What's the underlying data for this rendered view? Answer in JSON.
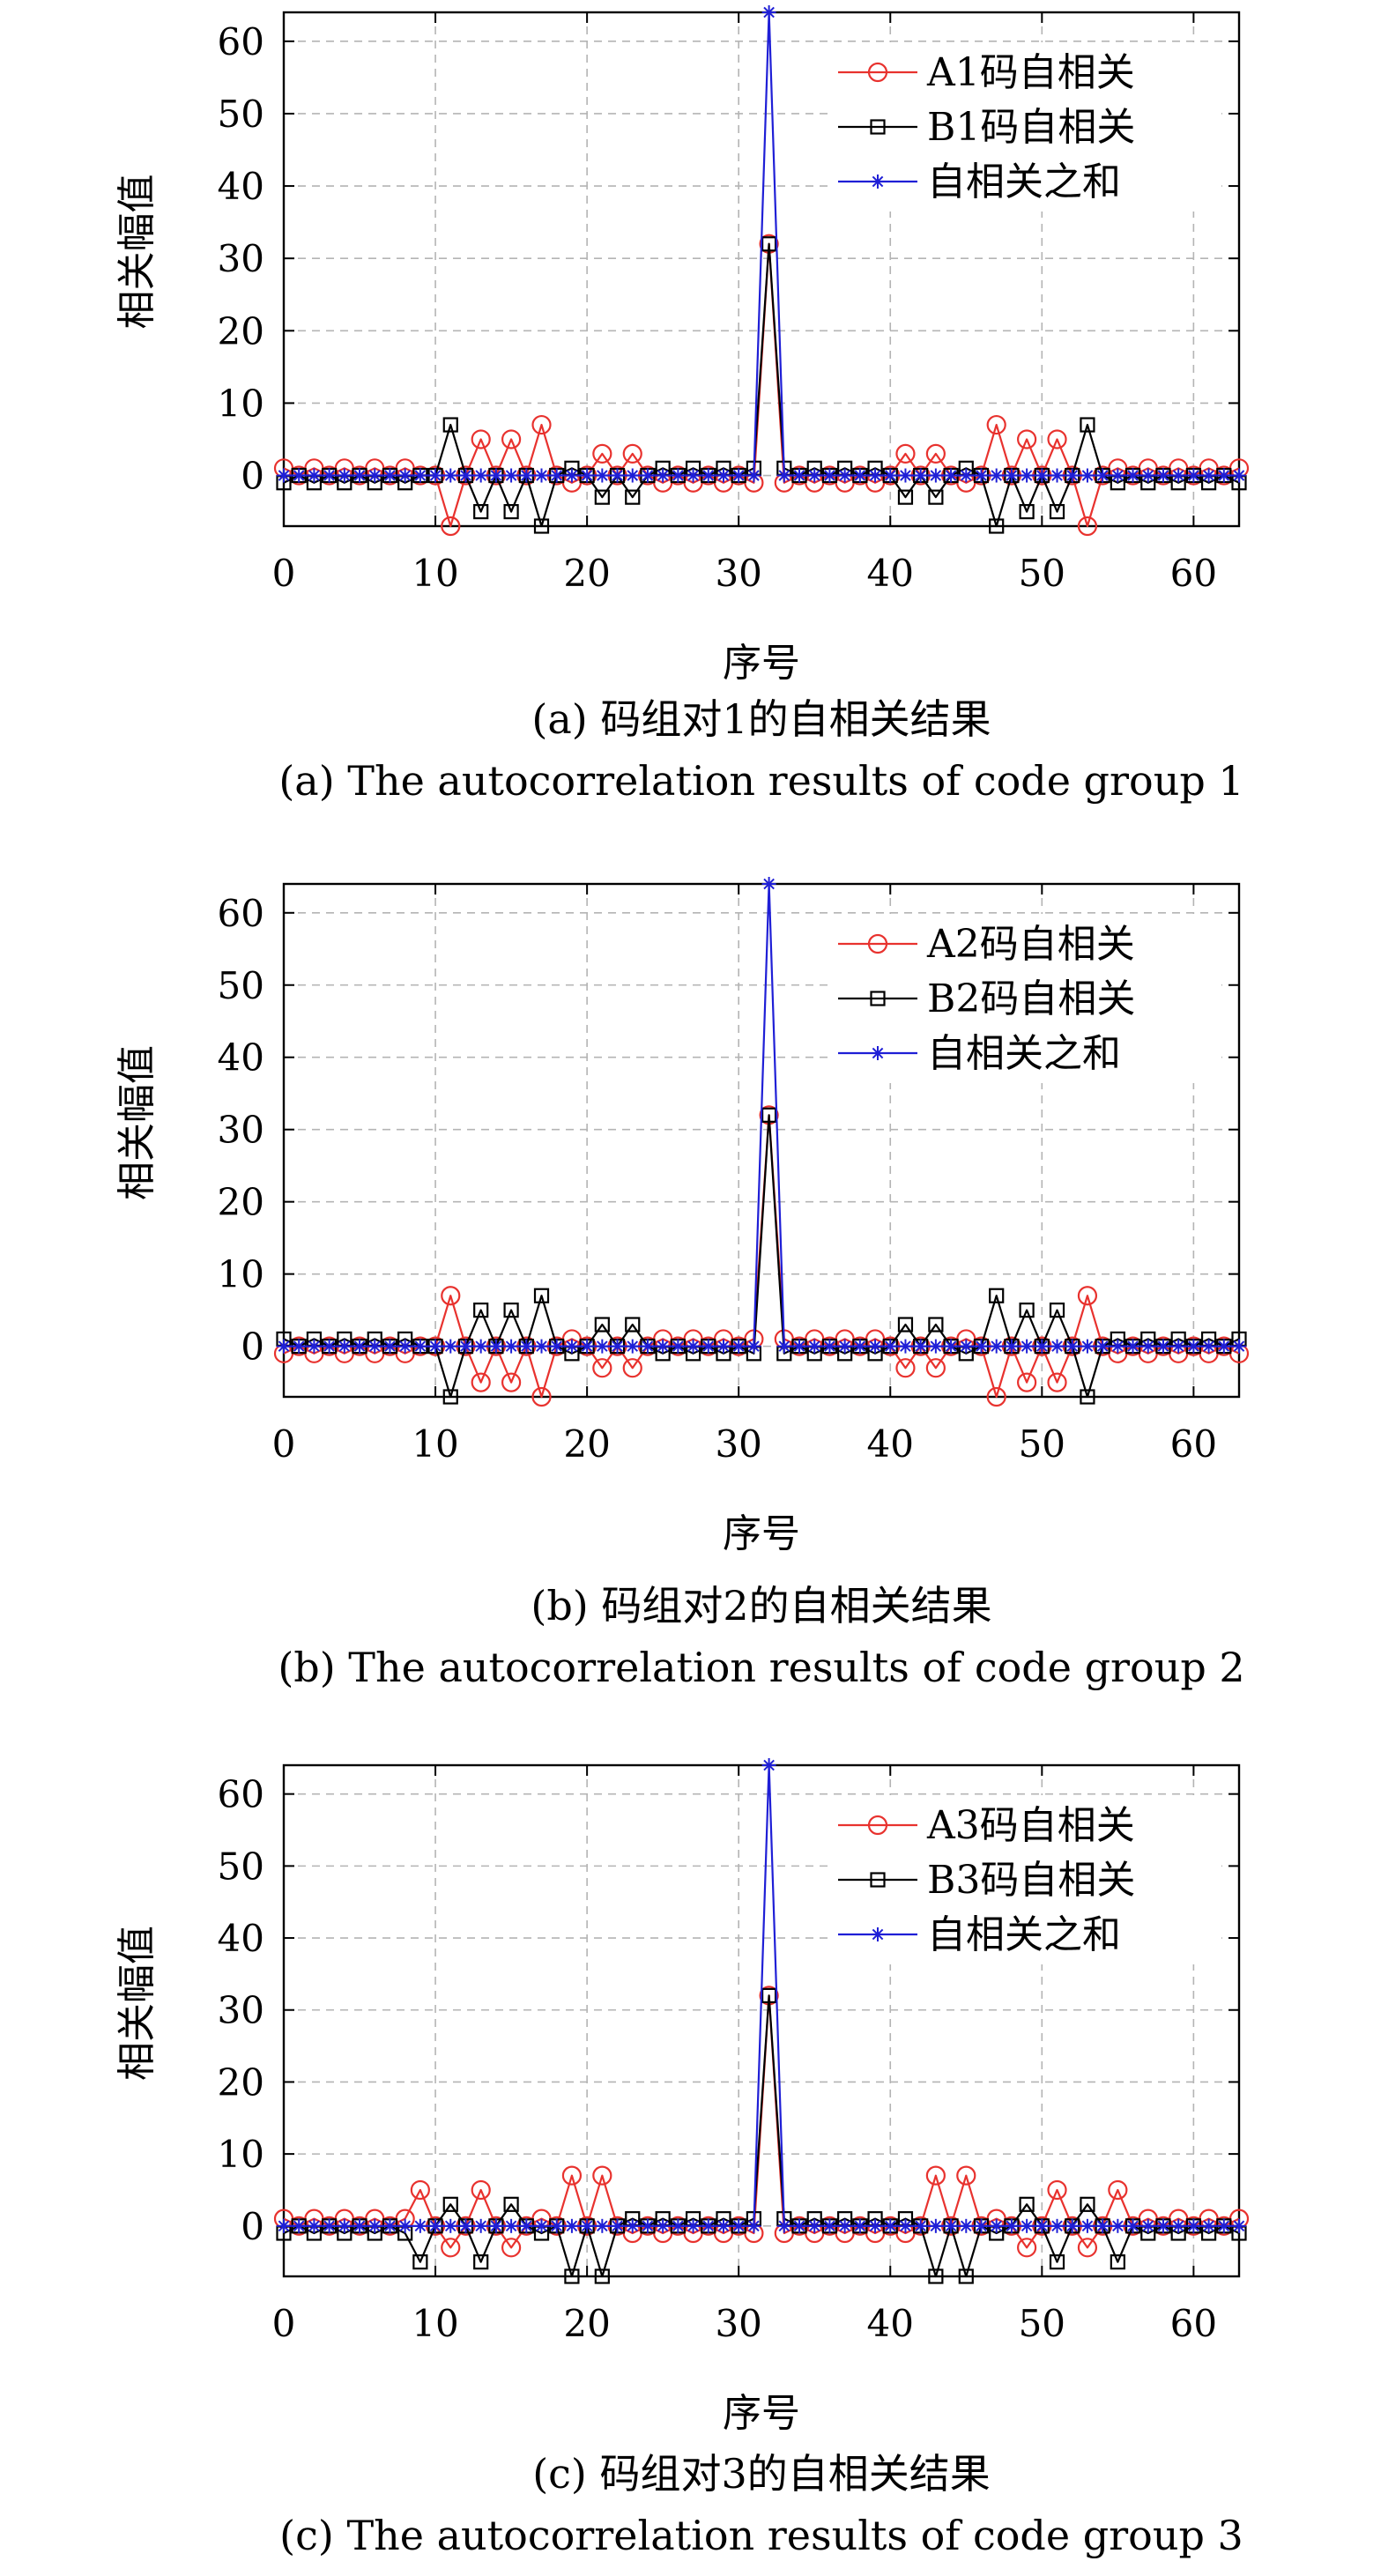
{
  "chart_data": [
    {
      "type": "line",
      "x": [
        0,
        1,
        2,
        3,
        4,
        5,
        6,
        7,
        8,
        9,
        10,
        11,
        12,
        13,
        14,
        15,
        16,
        17,
        18,
        19,
        20,
        21,
        22,
        23,
        24,
        25,
        26,
        27,
        28,
        29,
        30,
        31,
        32,
        33,
        34,
        35,
        36,
        37,
        38,
        39,
        40,
        41,
        42,
        43,
        44,
        45,
        46,
        47,
        48,
        49,
        50,
        51,
        52,
        53,
        54,
        55,
        56,
        57,
        58,
        59,
        60,
        61,
        62,
        63
      ],
      "xlim": [
        0,
        63
      ],
      "ylim": [
        -7,
        64
      ],
      "xticks": [
        0,
        10,
        20,
        30,
        40,
        50,
        60
      ],
      "yticks": [
        0,
        10,
        20,
        30,
        40,
        50,
        60
      ],
      "xlabel": "序号",
      "ylabel": "相关幅值",
      "grid": true,
      "legend_position": "top-right",
      "series": [
        {
          "name": "A1码自相关",
          "color": "#e8322e",
          "marker": "circle",
          "values": [
            1,
            0,
            1,
            0,
            1,
            0,
            1,
            0,
            1,
            0,
            0,
            -7,
            0,
            5,
            0,
            5,
            0,
            7,
            0,
            -1,
            0,
            3,
            0,
            3,
            0,
            -1,
            0,
            -1,
            0,
            -1,
            0,
            -1,
            32,
            -1,
            0,
            -1,
            0,
            -1,
            0,
            -1,
            0,
            3,
            0,
            3,
            0,
            -1,
            0,
            7,
            0,
            5,
            0,
            5,
            0,
            -7,
            0,
            1,
            0,
            1,
            0,
            1,
            0,
            1,
            0,
            1
          ]
        },
        {
          "name": "B1码自相关",
          "color": "#000000",
          "marker": "square",
          "values": [
            -1,
            0,
            -1,
            0,
            -1,
            0,
            -1,
            0,
            -1,
            0,
            0,
            7,
            0,
            -5,
            0,
            -5,
            0,
            -7,
            0,
            1,
            0,
            -3,
            0,
            -3,
            0,
            1,
            0,
            1,
            0,
            1,
            0,
            1,
            32,
            1,
            0,
            1,
            0,
            1,
            0,
            1,
            0,
            -3,
            0,
            -3,
            0,
            1,
            0,
            -7,
            0,
            -5,
            0,
            -5,
            0,
            7,
            0,
            -1,
            0,
            -1,
            0,
            -1,
            0,
            -1,
            0,
            -1
          ]
        },
        {
          "name": "自相关之和",
          "color": "#1f1fd6",
          "marker": "asterisk",
          "values": [
            0,
            0,
            0,
            0,
            0,
            0,
            0,
            0,
            0,
            0,
            0,
            0,
            0,
            0,
            0,
            0,
            0,
            0,
            0,
            0,
            0,
            0,
            0,
            0,
            0,
            0,
            0,
            0,
            0,
            0,
            0,
            0,
            64,
            0,
            0,
            0,
            0,
            0,
            0,
            0,
            0,
            0,
            0,
            0,
            0,
            0,
            0,
            0,
            0,
            0,
            0,
            0,
            0,
            0,
            0,
            0,
            0,
            0,
            0,
            0,
            0,
            0,
            0,
            0
          ]
        }
      ],
      "caption_cn": "(a) 码组对1的自相关结果",
      "caption_en": "(a) The autocorrelation results of code group 1"
    },
    {
      "type": "line",
      "x": [
        0,
        1,
        2,
        3,
        4,
        5,
        6,
        7,
        8,
        9,
        10,
        11,
        12,
        13,
        14,
        15,
        16,
        17,
        18,
        19,
        20,
        21,
        22,
        23,
        24,
        25,
        26,
        27,
        28,
        29,
        30,
        31,
        32,
        33,
        34,
        35,
        36,
        37,
        38,
        39,
        40,
        41,
        42,
        43,
        44,
        45,
        46,
        47,
        48,
        49,
        50,
        51,
        52,
        53,
        54,
        55,
        56,
        57,
        58,
        59,
        60,
        61,
        62,
        63
      ],
      "xlim": [
        0,
        63
      ],
      "ylim": [
        -7,
        64
      ],
      "xticks": [
        0,
        10,
        20,
        30,
        40,
        50,
        60
      ],
      "yticks": [
        0,
        10,
        20,
        30,
        40,
        50,
        60
      ],
      "xlabel": "序号",
      "ylabel": "相关幅值",
      "grid": true,
      "legend_position": "top-right",
      "series": [
        {
          "name": "A2码自相关",
          "color": "#e8322e",
          "marker": "circle",
          "values": [
            -1,
            0,
            -1,
            0,
            -1,
            0,
            -1,
            0,
            -1,
            0,
            0,
            7,
            0,
            -5,
            0,
            -5,
            0,
            -7,
            0,
            1,
            0,
            -3,
            0,
            -3,
            0,
            1,
            0,
            1,
            0,
            1,
            0,
            1,
            32,
            1,
            0,
            1,
            0,
            1,
            0,
            1,
            0,
            -3,
            0,
            -3,
            0,
            1,
            0,
            -7,
            0,
            -5,
            0,
            -5,
            0,
            7,
            0,
            -1,
            0,
            -1,
            0,
            -1,
            0,
            -1,
            0,
            -1
          ]
        },
        {
          "name": "B2码自相关",
          "color": "#000000",
          "marker": "square",
          "values": [
            1,
            0,
            1,
            0,
            1,
            0,
            1,
            0,
            1,
            0,
            0,
            -7,
            0,
            5,
            0,
            5,
            0,
            7,
            0,
            -1,
            0,
            3,
            0,
            3,
            0,
            -1,
            0,
            -1,
            0,
            -1,
            0,
            -1,
            32,
            -1,
            0,
            -1,
            0,
            -1,
            0,
            -1,
            0,
            3,
            0,
            3,
            0,
            -1,
            0,
            7,
            0,
            5,
            0,
            5,
            0,
            -7,
            0,
            1,
            0,
            1,
            0,
            1,
            0,
            1,
            0,
            1
          ]
        },
        {
          "name": "自相关之和",
          "color": "#1f1fd6",
          "marker": "asterisk",
          "values": [
            0,
            0,
            0,
            0,
            0,
            0,
            0,
            0,
            0,
            0,
            0,
            0,
            0,
            0,
            0,
            0,
            0,
            0,
            0,
            0,
            0,
            0,
            0,
            0,
            0,
            0,
            0,
            0,
            0,
            0,
            0,
            0,
            64,
            0,
            0,
            0,
            0,
            0,
            0,
            0,
            0,
            0,
            0,
            0,
            0,
            0,
            0,
            0,
            0,
            0,
            0,
            0,
            0,
            0,
            0,
            0,
            0,
            0,
            0,
            0,
            0,
            0,
            0,
            0
          ]
        }
      ],
      "caption_cn": "(b) 码组对2的自相关结果",
      "caption_en": "(b) The autocorrelation results of code group 2"
    },
    {
      "type": "line",
      "x": [
        0,
        1,
        2,
        3,
        4,
        5,
        6,
        7,
        8,
        9,
        10,
        11,
        12,
        13,
        14,
        15,
        16,
        17,
        18,
        19,
        20,
        21,
        22,
        23,
        24,
        25,
        26,
        27,
        28,
        29,
        30,
        31,
        32,
        33,
        34,
        35,
        36,
        37,
        38,
        39,
        40,
        41,
        42,
        43,
        44,
        45,
        46,
        47,
        48,
        49,
        50,
        51,
        52,
        53,
        54,
        55,
        56,
        57,
        58,
        59,
        60,
        61,
        62,
        63
      ],
      "xlim": [
        0,
        63
      ],
      "ylim": [
        -7,
        64
      ],
      "xticks": [
        0,
        10,
        20,
        30,
        40,
        50,
        60
      ],
      "yticks": [
        0,
        10,
        20,
        30,
        40,
        50,
        60
      ],
      "xlabel": "序号",
      "ylabel": "相关幅值",
      "grid": true,
      "legend_position": "top-right",
      "series": [
        {
          "name": "A3码自相关",
          "color": "#e8322e",
          "marker": "circle",
          "values": [
            1,
            0,
            1,
            0,
            1,
            0,
            1,
            0,
            1,
            5,
            0,
            -3,
            0,
            5,
            0,
            -3,
            0,
            1,
            0,
            7,
            0,
            7,
            0,
            -1,
            0,
            -1,
            0,
            -1,
            0,
            -1,
            0,
            -1,
            32,
            -1,
            0,
            -1,
            0,
            -1,
            0,
            -1,
            0,
            -1,
            0,
            7,
            0,
            7,
            0,
            1,
            0,
            -3,
            0,
            5,
            0,
            -3,
            0,
            5,
            0,
            1,
            0,
            1,
            0,
            1,
            0,
            1
          ]
        },
        {
          "name": "B3码自相关",
          "color": "#000000",
          "marker": "square",
          "values": [
            -1,
            0,
            -1,
            0,
            -1,
            0,
            -1,
            0,
            -1,
            -5,
            0,
            3,
            0,
            -5,
            0,
            3,
            0,
            -1,
            0,
            -7,
            0,
            -7,
            0,
            1,
            0,
            1,
            0,
            1,
            0,
            1,
            0,
            1,
            32,
            1,
            0,
            1,
            0,
            1,
            0,
            1,
            0,
            1,
            0,
            -7,
            0,
            -7,
            0,
            -1,
            0,
            3,
            0,
            -5,
            0,
            3,
            0,
            -5,
            0,
            -1,
            0,
            -1,
            0,
            -1,
            0,
            -1
          ]
        },
        {
          "name": "自相关之和",
          "color": "#1f1fd6",
          "marker": "asterisk",
          "values": [
            0,
            0,
            0,
            0,
            0,
            0,
            0,
            0,
            0,
            0,
            0,
            0,
            0,
            0,
            0,
            0,
            0,
            0,
            0,
            0,
            0,
            0,
            0,
            0,
            0,
            0,
            0,
            0,
            0,
            0,
            0,
            0,
            64,
            0,
            0,
            0,
            0,
            0,
            0,
            0,
            0,
            0,
            0,
            0,
            0,
            0,
            0,
            0,
            0,
            0,
            0,
            0,
            0,
            0,
            0,
            0,
            0,
            0,
            0,
            0,
            0,
            0,
            0,
            0
          ]
        }
      ],
      "caption_cn": "(c) 码组对3的自相关结果",
      "caption_en": "(c) The autocorrelation results of code group 3"
    }
  ]
}
